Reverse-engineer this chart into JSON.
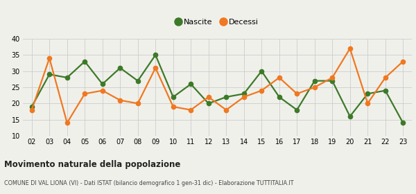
{
  "years": [
    "02",
    "03",
    "04",
    "05",
    "06",
    "07",
    "08",
    "09",
    "10",
    "11",
    "12",
    "13",
    "14",
    "15",
    "16",
    "17",
    "18",
    "19",
    "20",
    "21",
    "22",
    "23"
  ],
  "nascite": [
    19,
    29,
    28,
    33,
    26,
    31,
    27,
    35,
    22,
    26,
    20,
    22,
    23,
    30,
    22,
    18,
    27,
    27,
    16,
    23,
    24,
    14
  ],
  "decessi": [
    18,
    34,
    14,
    23,
    24,
    21,
    20,
    31,
    19,
    18,
    22,
    18,
    22,
    24,
    28,
    23,
    25,
    28,
    37,
    20,
    28,
    33
  ],
  "nascite_color": "#3d7a28",
  "decessi_color": "#f07820",
  "bg_color": "#f0f0eb",
  "grid_color": "#cccccc",
  "ylim": [
    10,
    40
  ],
  "yticks": [
    10,
    15,
    20,
    25,
    30,
    35,
    40
  ],
  "title": "Movimento naturale della popolazione",
  "subtitle": "COMUNE DI VAL LIONA (VI) - Dati ISTAT (bilancio demografico 1 gen-31 dic) - Elaborazione TUTTITALIA.IT",
  "legend_nascite": "Nascite",
  "legend_decessi": "Decessi",
  "marker_size": 4.5,
  "line_width": 1.6
}
